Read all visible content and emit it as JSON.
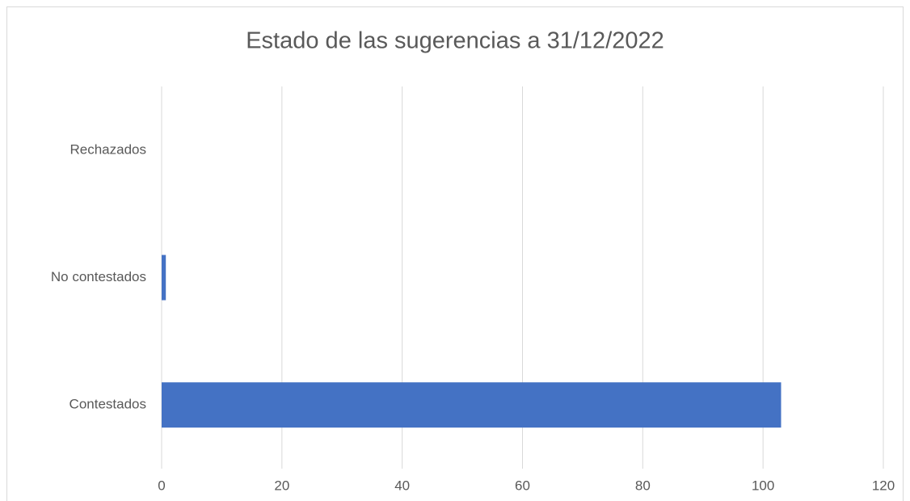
{
  "chart_data": {
    "type": "hbar",
    "title": "Estado de las sugerencias a 31/12/2022",
    "categories": [
      "Contestados",
      "No contestados",
      "Rechazados"
    ],
    "values": [
      103,
      0.7,
      0
    ],
    "color": "#4472c4",
    "xlim": [
      0,
      120
    ],
    "xticks": [
      0,
      20,
      40,
      60,
      80,
      100,
      120
    ],
    "grid": true
  }
}
